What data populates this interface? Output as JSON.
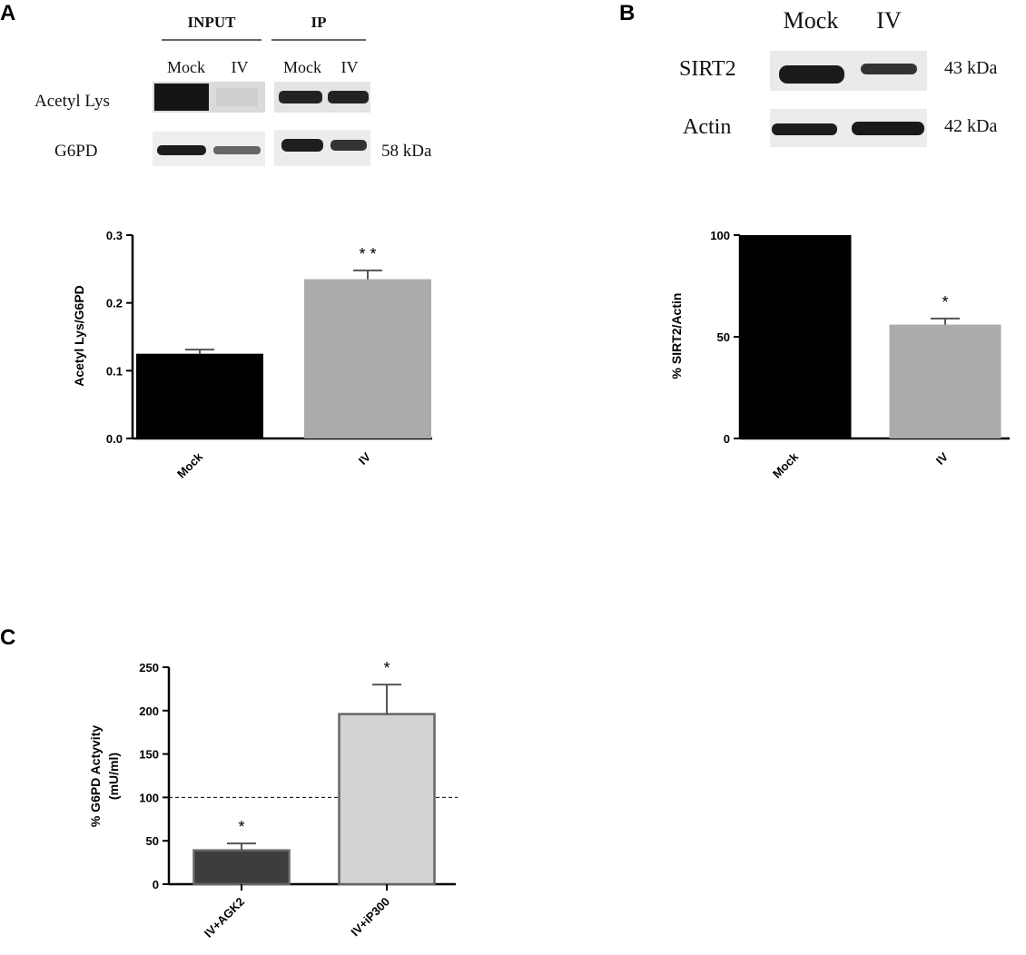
{
  "panels": {
    "A": {
      "letter": "A",
      "blot": {
        "group_input": "INPUT",
        "group_ip": "IP",
        "lanes": [
          "Mock",
          "IV",
          "Mock",
          "IV"
        ],
        "rows": [
          "Acetyl Lys",
          "G6PD"
        ],
        "size_label": "58 kDa"
      }
    },
    "B": {
      "letter": "B",
      "blot": {
        "lanes": [
          "Mock",
          "IV"
        ],
        "rows": [
          "SIRT2",
          "Actin"
        ],
        "size_labels": [
          "43 kDa",
          "42 kDa"
        ]
      }
    },
    "C": {
      "letter": "C"
    }
  },
  "chart_data": [
    {
      "panel": "A",
      "type": "bar",
      "categories": [
        "Mock",
        "IV"
      ],
      "values": [
        0.125,
        0.235
      ],
      "errors": [
        0.006,
        0.013
      ],
      "significance": [
        "",
        "* *"
      ],
      "ylabel": "Acetyl Lys/G6PD",
      "ylim": [
        0,
        0.3
      ],
      "yticks": [
        "0.0",
        "0.1",
        "0.2",
        "0.3"
      ],
      "colors": [
        "#000000",
        "#ababab"
      ]
    },
    {
      "panel": "B",
      "type": "bar",
      "categories": [
        "Mock",
        "IV"
      ],
      "values": [
        100,
        56
      ],
      "errors": [
        0,
        3
      ],
      "significance": [
        "",
        "*"
      ],
      "ylabel": "% SIRT2/Actin",
      "ylim": [
        0,
        100
      ],
      "yticks": [
        "0",
        "50",
        "100"
      ],
      "colors": [
        "#000000",
        "#ababab"
      ]
    },
    {
      "panel": "C",
      "type": "bar",
      "categories": [
        "IV+AGK2",
        "IV+iP300"
      ],
      "values": [
        39,
        196
      ],
      "errors": [
        8,
        34
      ],
      "significance": [
        "*",
        "*"
      ],
      "ylabel_lines": [
        "% G6PD Actyvity",
        "(mU/ml)"
      ],
      "ylim": [
        0,
        250
      ],
      "yticks": [
        "0",
        "50",
        "100",
        "150",
        "200",
        "250"
      ],
      "reference_line": 100,
      "colors": [
        "#3d3d3d",
        "#d3d3d3"
      ],
      "edge_color": "#666666"
    }
  ]
}
